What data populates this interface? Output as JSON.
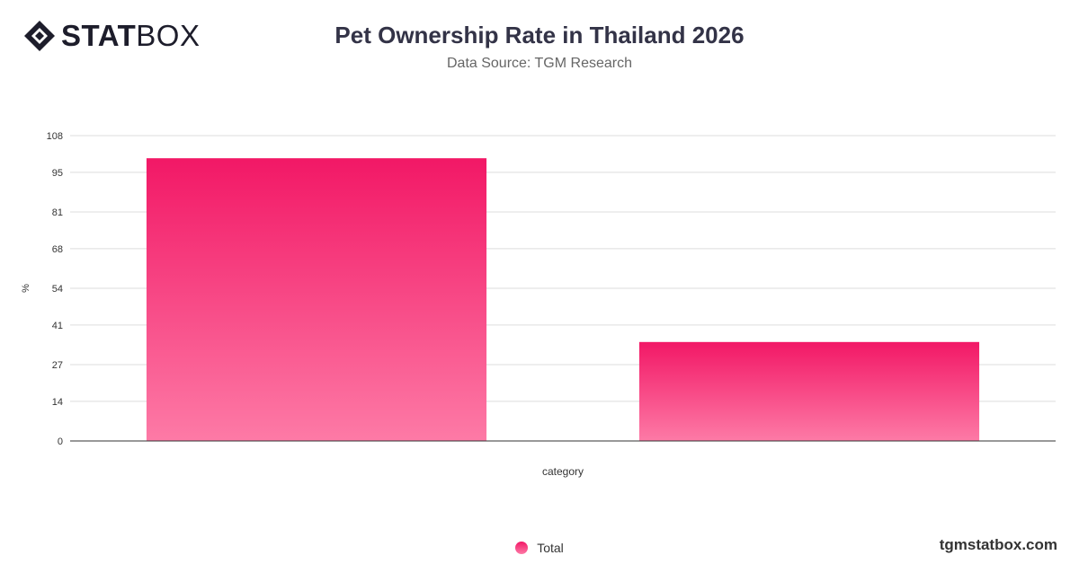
{
  "brand": {
    "logo_bold": "STAT",
    "logo_light": "BOX",
    "footer": "tgmstatbox.com"
  },
  "colors": {
    "bar_top": "#f21866",
    "bar_bottom": "#fd7aa6",
    "grid": "#dddddd",
    "axis": "#333333"
  },
  "chart_data": {
    "type": "bar",
    "title": "Pet Ownership Rate in Thailand 2026",
    "subtitle": "Data Source: TGM Research",
    "xlabel": "category",
    "ylabel": "%",
    "ylim": [
      0,
      108
    ],
    "yticks": [
      0,
      14,
      27,
      41,
      54,
      68,
      81,
      95,
      108
    ],
    "categories": [
      "",
      ""
    ],
    "series": [
      {
        "name": "Total",
        "values": [
          100,
          35
        ]
      }
    ],
    "grid": true,
    "legend": "bottom-center"
  }
}
